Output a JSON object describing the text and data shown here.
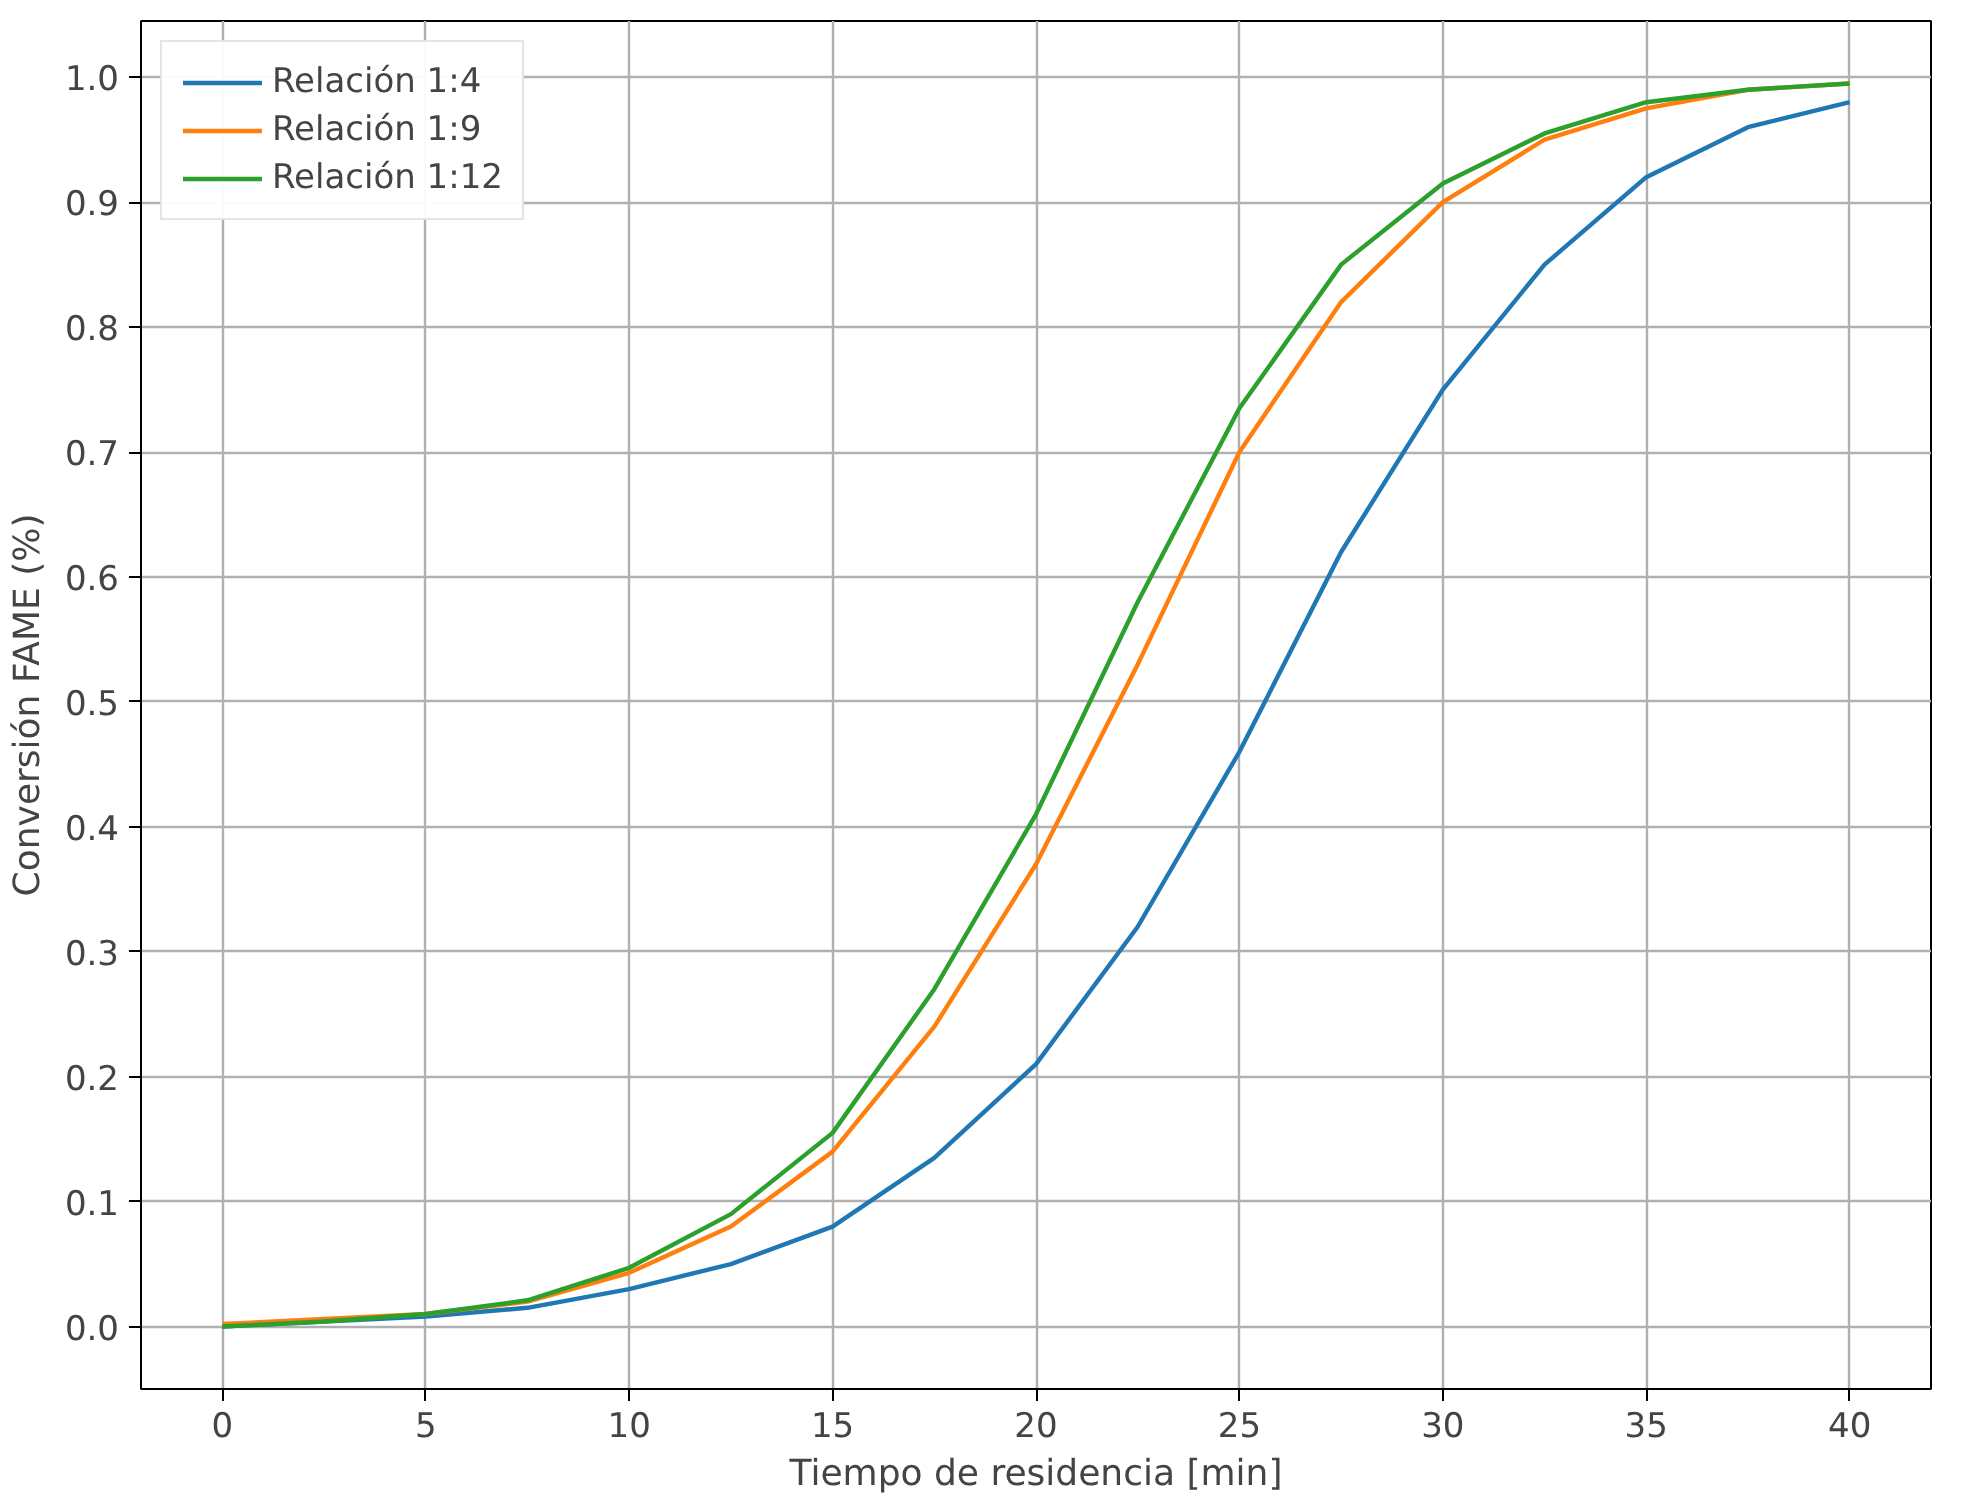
{
  "chart_data": {
    "type": "line",
    "xlabel": "Tiempo de residencia [min]",
    "ylabel": "Conversión FAME (%)",
    "x": [
      0,
      2.5,
      5,
      7.5,
      10,
      12.5,
      15,
      17.5,
      20,
      22.5,
      25,
      27.5,
      30,
      32.5,
      35,
      37.5,
      40
    ],
    "series": [
      {
        "name": "Relación 1:4",
        "color": "#1f77b4",
        "values": [
          0.0,
          0.004,
          0.008,
          0.015,
          0.03,
          0.05,
          0.08,
          0.135,
          0.21,
          0.32,
          0.46,
          0.62,
          0.75,
          0.85,
          0.92,
          0.96,
          0.98
        ]
      },
      {
        "name": "Relación 1:9",
        "color": "#ff7f0e",
        "values": [
          0.002,
          0.006,
          0.01,
          0.02,
          0.043,
          0.08,
          0.14,
          0.24,
          0.37,
          0.53,
          0.7,
          0.82,
          0.9,
          0.95,
          0.975,
          0.99,
          0.995
        ]
      },
      {
        "name": "Relación 1:12",
        "color": "#2ca02c",
        "values": [
          0.0,
          0.004,
          0.01,
          0.021,
          0.047,
          0.09,
          0.155,
          0.27,
          0.41,
          0.58,
          0.735,
          0.85,
          0.915,
          0.955,
          0.98,
          0.99,
          0.995
        ]
      }
    ],
    "xlim": [
      -2,
      42
    ],
    "ylim": [
      -0.05,
      1.045
    ],
    "xticks": [
      0,
      5,
      10,
      15,
      20,
      25,
      30,
      35,
      40
    ],
    "yticks": [
      {
        "value": 0,
        "label": "0.0"
      },
      0.1,
      0.2,
      0.3,
      0.4,
      0.5,
      0.6,
      0.7,
      0.8,
      0.9,
      {
        "value": 1,
        "label": "1.0"
      }
    ],
    "grid": true,
    "legend": "top left",
    "line_style": "solid",
    "marker": "none"
  }
}
